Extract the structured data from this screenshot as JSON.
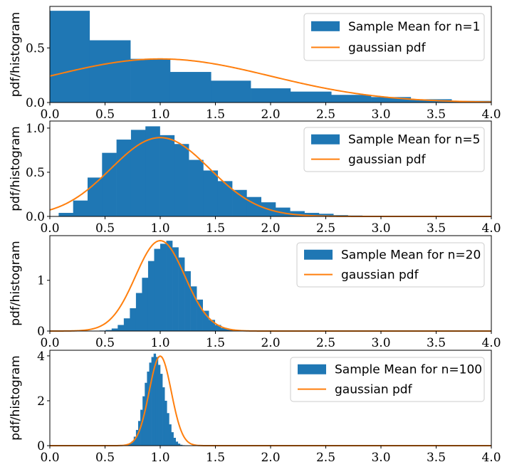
{
  "figure": {
    "ylabel": "pdf/histogram"
  },
  "colors": {
    "histogram": "#1f77b4",
    "gaussian": "#ff7f0e"
  },
  "chart_data": [
    {
      "type": "bar",
      "subtype": "histogram+line",
      "n": 1,
      "legend": [
        "Sample Mean for n=1",
        "gaussian pdf"
      ],
      "legend_placement": "top-right",
      "xlim": [
        0,
        4
      ],
      "ylim": [
        0,
        0.88
      ],
      "xticks": [
        "0.0",
        "0.5",
        "1.0",
        "1.5",
        "2.0",
        "2.5",
        "3.0",
        "3.5",
        "4.0"
      ],
      "yticks": [
        {
          "v": 0,
          "label": "0.0"
        },
        {
          "v": 0.5,
          "label": "0.5"
        }
      ],
      "bin_edges": [
        0,
        0.36,
        0.73,
        1.09,
        1.46,
        1.82,
        2.18,
        2.55,
        2.91,
        3.27,
        3.64,
        4.0
      ],
      "hist_values": [
        0.84,
        0.57,
        0.4,
        0.28,
        0.2,
        0.13,
        0.1,
        0.07,
        0.05,
        0.03,
        0.015
      ],
      "gaussian": {
        "mean": 1.0,
        "std": 1.0
      }
    },
    {
      "type": "bar",
      "subtype": "histogram+line",
      "n": 5,
      "legend": [
        "Sample Mean for n=5",
        "gaussian pdf"
      ],
      "legend_placement": "top-right",
      "xlim": [
        0,
        4
      ],
      "ylim": [
        0,
        1.08
      ],
      "xticks": [
        "0.0",
        "0.5",
        "1.0",
        "1.5",
        "2.0",
        "2.5",
        "3.0",
        "3.5",
        "4.0"
      ],
      "yticks": [
        {
          "v": 0,
          "label": "0.0"
        },
        {
          "v": 0.5,
          "label": "0.5"
        },
        {
          "v": 1,
          "label": "1.0"
        }
      ],
      "bin_start": 0.08,
      "bin_width": 0.131,
      "hist_values": [
        0.04,
        0.18,
        0.44,
        0.72,
        0.87,
        0.98,
        1.02,
        0.92,
        0.82,
        0.64,
        0.52,
        0.4,
        0.3,
        0.22,
        0.16,
        0.1,
        0.06,
        0.04,
        0.03,
        0.015,
        0.01
      ],
      "gaussian": {
        "mean": 1.0,
        "std": 0.447
      }
    },
    {
      "type": "bar",
      "subtype": "histogram+line",
      "n": 20,
      "legend": [
        "Sample Mean for n=20",
        "gaussian pdf"
      ],
      "legend_placement": "top-right",
      "xlim": [
        0,
        4
      ],
      "ylim": [
        0,
        1.88
      ],
      "xticks": [
        "0.0",
        "0.5",
        "1.0",
        "1.5",
        "2.0",
        "2.5",
        "3.0",
        "3.5",
        "4.0"
      ],
      "yticks": [
        {
          "v": 0,
          "label": "0"
        },
        {
          "v": 1,
          "label": "1"
        }
      ],
      "bin_start": 0.45,
      "bin_width": 0.055,
      "hist_values": [
        0.01,
        0.02,
        0.05,
        0.12,
        0.25,
        0.45,
        0.75,
        1.05,
        1.38,
        1.62,
        1.72,
        1.78,
        1.65,
        1.45,
        1.18,
        0.88,
        0.62,
        0.4,
        0.22,
        0.12,
        0.06,
        0.03,
        0.01
      ],
      "gaussian": {
        "mean": 1.0,
        "std": 0.224
      }
    },
    {
      "type": "bar",
      "subtype": "histogram+line",
      "n": 100,
      "legend": [
        "Sample Mean for n=100",
        "gaussian pdf"
      ],
      "legend_placement": "top-right",
      "xlim": [
        0,
        4
      ],
      "ylim": [
        0,
        4.25
      ],
      "xticks": [
        "0.0",
        "0.5",
        "1.0",
        "1.5",
        "2.0",
        "2.5",
        "3.0",
        "3.5",
        "4.0"
      ],
      "yticks": [
        {
          "v": 0,
          "label": "0"
        },
        {
          "v": 2,
          "label": "2"
        },
        {
          "v": 4,
          "label": "4"
        }
      ],
      "bin_start": 0.68,
      "bin_width": 0.02,
      "hist_values": [
        0.02,
        0.05,
        0.1,
        0.2,
        0.4,
        0.7,
        1.1,
        1.6,
        2.2,
        2.8,
        3.3,
        3.7,
        3.95,
        4.1,
        3.95,
        3.6,
        3.2,
        2.6,
        2.0,
        1.45,
        0.95,
        0.6,
        0.35,
        0.18,
        0.09,
        0.04,
        0.02
      ],
      "gaussian": {
        "mean": 1.0,
        "std": 0.1
      }
    }
  ]
}
